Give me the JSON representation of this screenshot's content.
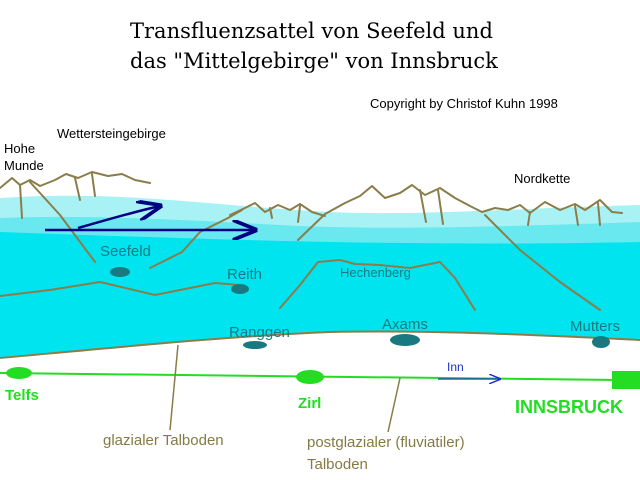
{
  "title": {
    "line1": "Transfluenzsattel von Seefeld und",
    "line2": "das \"Mittelgebirge\" von Innsbruck"
  },
  "copyright": "Copyright by Christof Kuhn 1998",
  "labels": {
    "hohe": "Hohe",
    "munde": "Munde",
    "wetterstein": "Wettersteingebirge",
    "nordkette": "Nordkette",
    "seefeld": "Seefeld",
    "reith": "Reith",
    "hechenberg": "Hechenberg",
    "ranggen": "Ranggen",
    "axams": "Axams",
    "mutters": "Mutters",
    "telfs": "Telfs",
    "zirl": "Zirl",
    "inn": "Inn",
    "innsbruck": "INNSBRUCK",
    "glazial": "glazialer Talboden",
    "postglazial1": "postglazialer (fluviatiler)",
    "postglazial2": "Talboden"
  },
  "colors": {
    "ice_light": "#a8f2f6",
    "ice_mid": "#6ae8f0",
    "ice_deep": "#00e4f0",
    "mountain": "#8a7d4a",
    "town_marker": "#187a80",
    "river": "#22dd22",
    "flow_arrow": "#000080",
    "inn_arrow": "#1a2fd0"
  }
}
